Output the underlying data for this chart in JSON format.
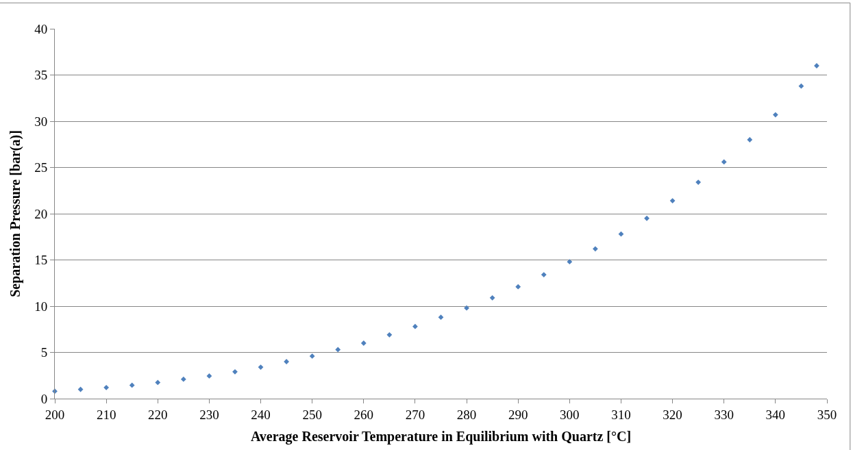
{
  "chart_data": {
    "type": "scatter",
    "xlabel": "Average Reservoir Temperature in Equilibrium with Quartz [°C]",
    "ylabel": "Separation Pressure [bar(a)]",
    "x": [
      200,
      205,
      210,
      215,
      220,
      225,
      230,
      235,
      240,
      245,
      250,
      255,
      260,
      265,
      270,
      275,
      280,
      285,
      290,
      295,
      300,
      305,
      310,
      315,
      320,
      325,
      330,
      335,
      340,
      345,
      348
    ],
    "series": [
      {
        "color": "#4f81bd",
        "values": [
          0.8,
          1.0,
          1.2,
          1.45,
          1.75,
          2.1,
          2.45,
          2.9,
          3.4,
          4.0,
          4.6,
          5.3,
          6.0,
          6.9,
          7.8,
          8.8,
          9.8,
          10.9,
          12.1,
          13.4,
          14.8,
          16.2,
          17.8,
          19.5,
          21.4,
          23.4,
          25.6,
          28.0,
          30.7,
          33.8,
          36.0
        ]
      }
    ],
    "xlim": [
      200,
      350
    ],
    "xticks": [
      200,
      210,
      220,
      230,
      240,
      250,
      260,
      270,
      280,
      290,
      300,
      310,
      320,
      330,
      340,
      350
    ],
    "ylim": [
      0,
      40
    ],
    "yticks": [
      0,
      5,
      10,
      15,
      20,
      25,
      30,
      35,
      40
    ],
    "grid": "y",
    "marker": "diamond"
  }
}
